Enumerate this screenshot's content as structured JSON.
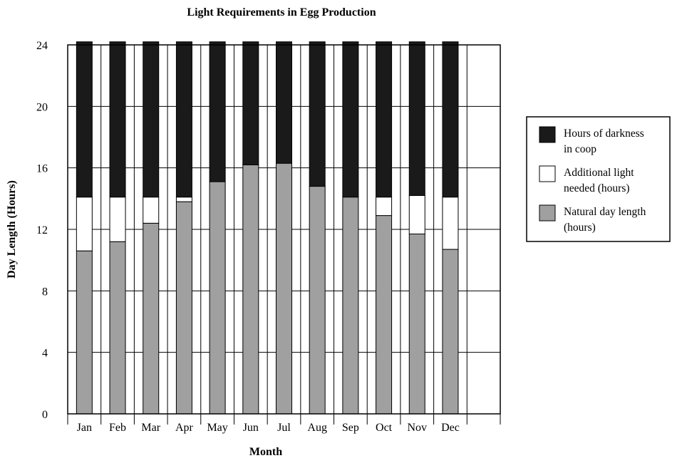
{
  "chart_data": {
    "type": "bar",
    "stacked": true,
    "title": "Light Requirements in Egg Production",
    "xlabel": "Month",
    "ylabel": "Day Length (Hours)",
    "ylim": [
      0,
      24
    ],
    "yticks": [
      0,
      4,
      8,
      12,
      16,
      20,
      24
    ],
    "grid": true,
    "legend_position": "right",
    "categories": [
      "Jan",
      "Feb",
      "Mar",
      "Apr",
      "May",
      "Jun",
      "Jul",
      "Aug",
      "Sep",
      "Oct",
      "Nov",
      "Dec"
    ],
    "series": [
      {
        "name": "Natural day length (hours)",
        "color": "#a0a0a0",
        "values": [
          10.6,
          11.2,
          12.4,
          13.8,
          15.1,
          16.2,
          16.3,
          14.8,
          14.1,
          12.9,
          11.7,
          10.7
        ]
      },
      {
        "name": "Additional light needed (hours)",
        "color": "#ffffff",
        "values": [
          3.5,
          2.9,
          1.7,
          0.3,
          0,
          0,
          0,
          0,
          0,
          1.2,
          2.5,
          3.4
        ]
      },
      {
        "name": "Hours of darkness in coop",
        "color": "#1a1a1a",
        "values": [
          10.1,
          10.1,
          10.1,
          10.1,
          9.1,
          8.0,
          7.9,
          9.4,
          10.1,
          10.1,
          10.0,
          10.1
        ]
      }
    ],
    "legend": [
      {
        "series": 2,
        "lines": [
          "Hours of darkness",
          "in coop"
        ]
      },
      {
        "series": 1,
        "lines": [
          "Additional light",
          "needed (hours)"
        ]
      },
      {
        "series": 0,
        "lines": [
          "Natural day length",
          "(hours)"
        ]
      }
    ]
  }
}
